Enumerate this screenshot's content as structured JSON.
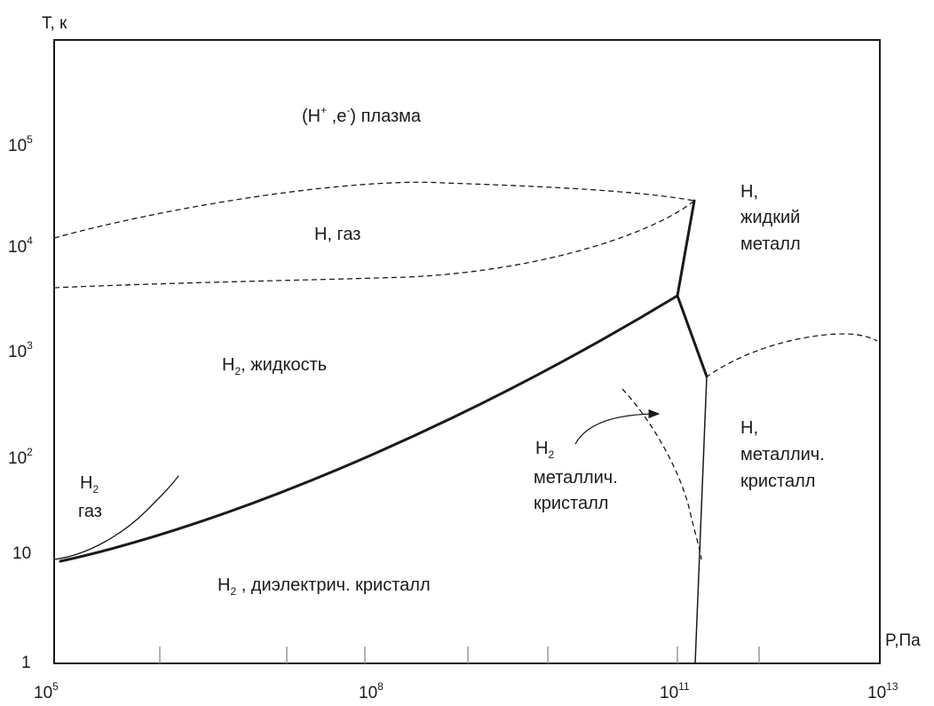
{
  "axes": {
    "y_title": "T, к",
    "x_title": "P,Па",
    "y_ticks": [
      {
        "base": "1",
        "exp": ""
      },
      {
        "base": "10",
        "exp": ""
      },
      {
        "base": "10",
        "exp": "2"
      },
      {
        "base": "10",
        "exp": "3"
      },
      {
        "base": "10",
        "exp": "4"
      },
      {
        "base": "10",
        "exp": "5"
      }
    ],
    "x_ticks": [
      {
        "base": "10",
        "exp": "5"
      },
      {
        "base": "10",
        "exp": "8"
      },
      {
        "base": "10",
        "exp": "11"
      },
      {
        "base": "10",
        "exp": "13"
      }
    ]
  },
  "regions": {
    "plasma": {
      "open": "(H",
      "sup1": "+",
      "mid": " ,e",
      "sup2": "-",
      "close": ") плазма"
    },
    "h_gas": "H, газ",
    "h2_liquid": {
      "pre": "H",
      "sub": "2",
      "post": ", жидкость"
    },
    "h2_gas": {
      "line1_pre": "H",
      "line1_sub": "2",
      "line2": "газ"
    },
    "h2_dielectric": {
      "pre": "H",
      "sub": "2",
      "post": " , диэлектрич. кристалл"
    },
    "h2_metallic": {
      "line1_pre": "H",
      "line1_sub": "2",
      "line2": "металлич.",
      "line3": "кристалл"
    },
    "h_liquid_metal": {
      "line1": "H,",
      "line2": "жидкий",
      "line3": "металл"
    },
    "h_metallic_crystal": {
      "line1": "H,",
      "line2": "металлич.",
      "line3": "кристалл"
    }
  },
  "colors": {
    "line": "#1a1a1a",
    "background": "#ffffff"
  }
}
